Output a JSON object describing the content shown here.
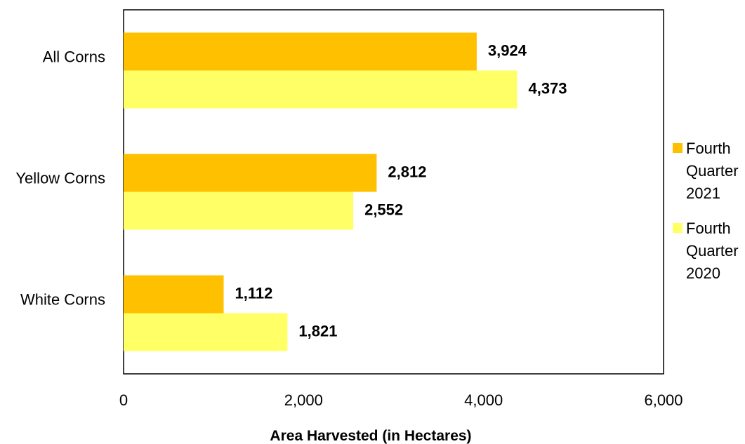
{
  "chart_data": {
    "type": "bar",
    "orientation": "horizontal",
    "categories": [
      "All Corns",
      "Yellow Corns",
      "White Corns"
    ],
    "series": [
      {
        "name": "Fourth Quarter 2021",
        "name_lines": [
          "Fourth",
          "Quarter",
          "2021"
        ],
        "color": "#FFC000",
        "values": [
          3924,
          2812,
          1112
        ],
        "labels": [
          "3,924",
          "2,812",
          "1,112"
        ]
      },
      {
        "name": "Fourth Quarter 2020",
        "name_lines": [
          "Fourth",
          "Quarter",
          "2020"
        ],
        "color": "#FFFF66",
        "values": [
          4373,
          2552,
          1821
        ],
        "labels": [
          "4,373",
          "2,552",
          "1,821"
        ]
      }
    ],
    "xlabel": "Area Harvested (in Hectares)",
    "ylabel": "",
    "xlim": [
      0,
      6000
    ],
    "xticks": [
      0,
      2000,
      4000,
      6000
    ],
    "xtick_labels": [
      "0",
      "2,000",
      "4,000",
      "6,000"
    ],
    "grid": false,
    "legend_position": "right"
  }
}
